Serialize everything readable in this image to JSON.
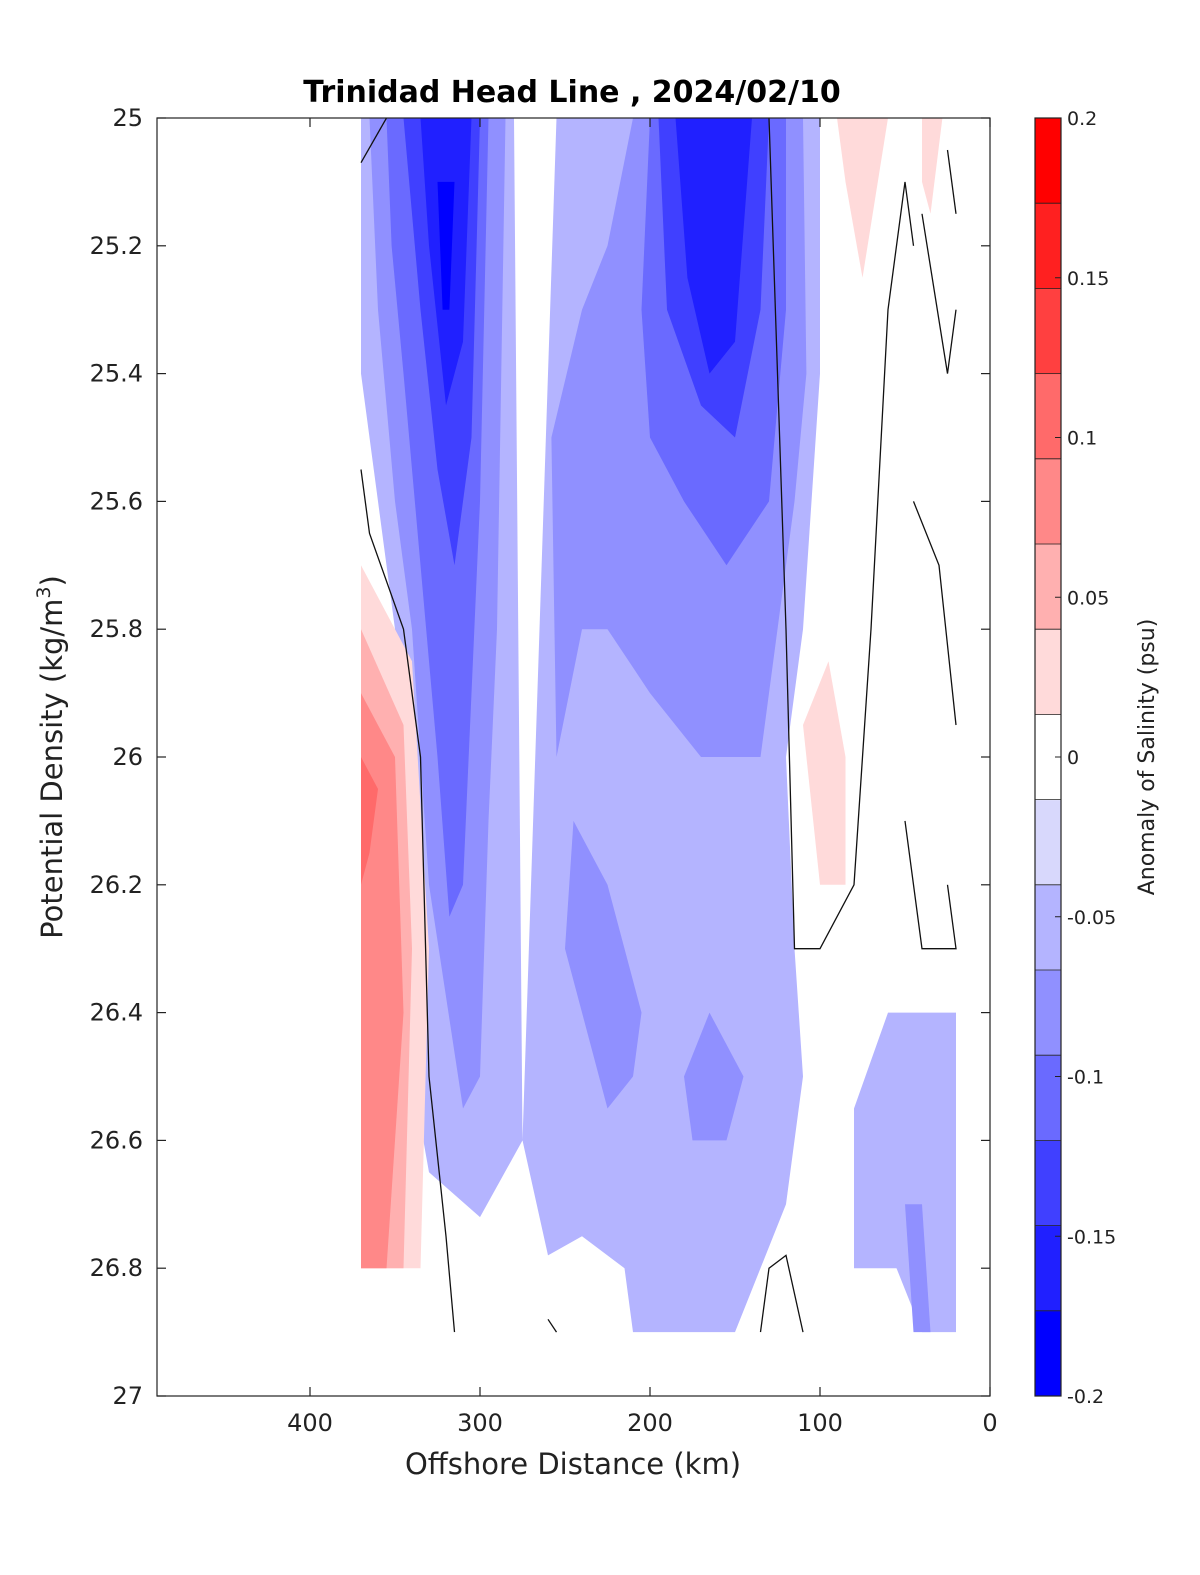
{
  "chart_data": {
    "type": "heatmap",
    "title": "Trinidad Head Line , 2024/02/10",
    "xlabel": "Offshore Distance (km)",
    "ylabel_main": "Potential Density (kg/m",
    "ylabel_sup": "3",
    "ylabel_close": ")",
    "xlim": [
      490,
      0
    ],
    "ylim": [
      25,
      27
    ],
    "x_ticks": [
      "400",
      "300",
      "200",
      "100",
      "0"
    ],
    "y_ticks": [
      "25",
      "25.2",
      "25.4",
      "25.6",
      "25.8",
      "26",
      "26.2",
      "26.4",
      "26.6",
      "26.8",
      "27"
    ],
    "colorbar": {
      "label": "Anomaly of Salinity (psu)",
      "range": [
        -0.2,
        0.2
      ],
      "ticks": [
        "-0.2",
        "-0.15",
        "-0.1",
        "-0.05",
        "0",
        "0.05",
        "0.1",
        "0.15",
        "0.2"
      ],
      "bands": [
        "#0000ff",
        "#2020ff",
        "#4040ff",
        "#6a6aff",
        "#9090ff",
        "#b4b4ff",
        "#d8d8fc",
        "#ffffff",
        "#ffdada",
        "#ffb0b0",
        "#ff8888",
        "#ff6a6a",
        "#ff4040",
        "#ff2020",
        "#ff0000"
      ]
    },
    "data_extent": {
      "x_range_km": [
        20,
        370
      ],
      "y_range": [
        25,
        26.9
      ]
    },
    "regions": [
      {
        "level": -0.05,
        "poly": [
          [
            370,
            25
          ],
          [
            280,
            25
          ],
          [
            275,
            26.6
          ],
          [
            300,
            26.72
          ],
          [
            330,
            26.65
          ],
          [
            340,
            26.5
          ],
          [
            345,
            26.0
          ],
          [
            350,
            25.8
          ],
          [
            360,
            25.6
          ],
          [
            370,
            25.4
          ]
        ]
      },
      {
        "level": -0.05,
        "poly": [
          [
            255,
            25
          ],
          [
            100,
            25
          ],
          [
            100,
            25.4
          ],
          [
            110,
            25.8
          ],
          [
            120,
            26.0
          ],
          [
            115,
            26.3
          ],
          [
            110,
            26.5
          ],
          [
            120,
            26.7
          ],
          [
            150,
            26.9
          ],
          [
            210,
            26.9
          ],
          [
            215,
            26.8
          ],
          [
            240,
            26.75
          ],
          [
            260,
            26.78
          ],
          [
            275,
            26.6
          ]
        ]
      },
      {
        "level": -0.05,
        "poly": [
          [
            80,
            26.55
          ],
          [
            60,
            26.4
          ],
          [
            20,
            26.4
          ],
          [
            20,
            26.8
          ],
          [
            80,
            26.8
          ]
        ]
      },
      {
        "level": -0.05,
        "poly": [
          [
            55,
            26.8
          ],
          [
            20,
            26.4
          ],
          [
            20,
            26.9
          ],
          [
            40,
            26.9
          ]
        ]
      },
      {
        "level": -0.075,
        "poly": [
          [
            365,
            25
          ],
          [
            285,
            25
          ],
          [
            290,
            25.8
          ],
          [
            295,
            26.1
          ],
          [
            300,
            26.5
          ],
          [
            310,
            26.55
          ],
          [
            330,
            26.2
          ],
          [
            340,
            25.8
          ],
          [
            350,
            25.6
          ],
          [
            360,
            25.3
          ]
        ]
      },
      {
        "level": -0.075,
        "poly": [
          [
            210,
            25
          ],
          [
            110,
            25
          ],
          [
            108,
            25.4
          ],
          [
            115,
            25.6
          ],
          [
            125,
            25.8
          ],
          [
            135,
            26.0
          ],
          [
            170,
            26.0
          ],
          [
            200,
            25.9
          ],
          [
            225,
            25.8
          ],
          [
            240,
            25.8
          ],
          [
            255,
            26.0
          ],
          [
            258,
            25.5
          ],
          [
            240,
            25.3
          ],
          [
            225,
            25.2
          ]
        ]
      },
      {
        "level": -0.075,
        "poly": [
          [
            225,
            26.2
          ],
          [
            245,
            26.1
          ],
          [
            250,
            26.3
          ],
          [
            235,
            26.45
          ],
          [
            225,
            26.55
          ],
          [
            210,
            26.5
          ],
          [
            205,
            26.4
          ]
        ]
      },
      {
        "level": -0.075,
        "poly": [
          [
            180,
            26.5
          ],
          [
            165,
            26.4
          ],
          [
            145,
            26.5
          ],
          [
            155,
            26.6
          ],
          [
            175,
            26.6
          ]
        ]
      },
      {
        "level": -0.075,
        "poly": [
          [
            50,
            26.7
          ],
          [
            40,
            26.7
          ],
          [
            35,
            26.9
          ],
          [
            45,
            26.9
          ]
        ]
      },
      {
        "level": -0.1,
        "poly": [
          [
            355,
            25
          ],
          [
            295,
            25
          ],
          [
            300,
            25.6
          ],
          [
            305,
            25.9
          ],
          [
            310,
            26.2
          ],
          [
            318,
            26.25
          ],
          [
            325,
            26.0
          ],
          [
            335,
            25.7
          ],
          [
            345,
            25.4
          ],
          [
            352,
            25.2
          ]
        ]
      },
      {
        "level": -0.1,
        "poly": [
          [
            200,
            25
          ],
          [
            120,
            25
          ],
          [
            120,
            25.3
          ],
          [
            130,
            25.6
          ],
          [
            155,
            25.7
          ],
          [
            180,
            25.6
          ],
          [
            200,
            25.5
          ],
          [
            205,
            25.3
          ]
        ]
      },
      {
        "level": -0.125,
        "poly": [
          [
            345,
            25
          ],
          [
            300,
            25
          ],
          [
            305,
            25.5
          ],
          [
            315,
            25.7
          ],
          [
            325,
            25.55
          ],
          [
            335,
            25.3
          ],
          [
            340,
            25.15
          ]
        ]
      },
      {
        "level": -0.125,
        "poly": [
          [
            195,
            25
          ],
          [
            130,
            25
          ],
          [
            135,
            25.3
          ],
          [
            150,
            25.5
          ],
          [
            170,
            25.45
          ],
          [
            190,
            25.3
          ]
        ]
      },
      {
        "level": -0.15,
        "poly": [
          [
            335,
            25
          ],
          [
            305,
            25
          ],
          [
            310,
            25.35
          ],
          [
            320,
            25.45
          ],
          [
            330,
            25.2
          ]
        ]
      },
      {
        "level": -0.15,
        "poly": [
          [
            185,
            25
          ],
          [
            140,
            25
          ],
          [
            150,
            25.35
          ],
          [
            165,
            25.4
          ],
          [
            178,
            25.25
          ]
        ]
      },
      {
        "level": -0.175,
        "poly": [
          [
            325,
            25.1
          ],
          [
            315,
            25.1
          ],
          [
            318,
            25.3
          ],
          [
            322,
            25.3
          ]
        ]
      },
      {
        "level": 0.025,
        "poly": [
          [
            370,
            25.7
          ],
          [
            340,
            25.85
          ],
          [
            330,
            26.3
          ],
          [
            335,
            26.8
          ],
          [
            370,
            26.8
          ]
        ]
      },
      {
        "level": 0.05,
        "poly": [
          [
            370,
            25.8
          ],
          [
            345,
            25.95
          ],
          [
            340,
            26.3
          ],
          [
            345,
            26.8
          ],
          [
            370,
            26.8
          ]
        ]
      },
      {
        "level": 0.075,
        "poly": [
          [
            370,
            25.9
          ],
          [
            350,
            26.0
          ],
          [
            345,
            26.4
          ],
          [
            355,
            26.8
          ],
          [
            370,
            26.8
          ]
        ]
      },
      {
        "level": 0.1,
        "poly": [
          [
            370,
            26.0
          ],
          [
            360,
            26.05
          ],
          [
            365,
            26.15
          ],
          [
            370,
            26.2
          ]
        ]
      },
      {
        "level": 0.025,
        "poly": [
          [
            90,
            25
          ],
          [
            60,
            25
          ],
          [
            75,
            25.25
          ],
          [
            85,
            25.1
          ]
        ]
      },
      {
        "level": 0.025,
        "poly": [
          [
            40,
            25
          ],
          [
            28,
            25
          ],
          [
            35,
            25.15
          ],
          [
            40,
            25.1
          ]
        ]
      },
      {
        "level": 0.025,
        "poly": [
          [
            110,
            25.95
          ],
          [
            95,
            25.85
          ],
          [
            85,
            26.0
          ],
          [
            85,
            26.2
          ],
          [
            100,
            26.2
          ]
        ]
      }
    ],
    "zero_contours": [
      [
        [
          370,
          25.07
        ],
        [
          355,
          25.0
        ]
      ],
      [
        [
          370,
          25.55
        ],
        [
          365,
          25.65
        ],
        [
          345,
          25.8
        ],
        [
          335,
          26.0
        ],
        [
          330,
          26.5
        ],
        [
          320,
          26.75
        ],
        [
          315,
          26.9
        ]
      ],
      [
        [
          130,
          25.0
        ],
        [
          120,
          25.8
        ],
        [
          115,
          26.3
        ],
        [
          100,
          26.3
        ],
        [
          80,
          26.2
        ],
        [
          70,
          25.8
        ],
        [
          60,
          25.3
        ],
        [
          50,
          25.1
        ],
        [
          45,
          25.2
        ]
      ],
      [
        [
          50,
          26.1
        ],
        [
          40,
          26.3
        ],
        [
          20,
          26.3
        ],
        [
          25,
          26.2
        ]
      ],
      [
        [
          45,
          25.6
        ],
        [
          30,
          25.7
        ],
        [
          20,
          25.95
        ]
      ],
      [
        [
          20,
          25.3
        ],
        [
          25,
          25.4
        ],
        [
          40,
          25.15
        ]
      ],
      [
        [
          135,
          26.9
        ],
        [
          130,
          26.8
        ],
        [
          120,
          26.78
        ],
        [
          110,
          26.9
        ]
      ],
      [
        [
          260,
          26.88
        ],
        [
          255,
          26.9
        ]
      ],
      [
        [
          20,
          25.15
        ],
        [
          25,
          25.05
        ]
      ]
    ]
  }
}
